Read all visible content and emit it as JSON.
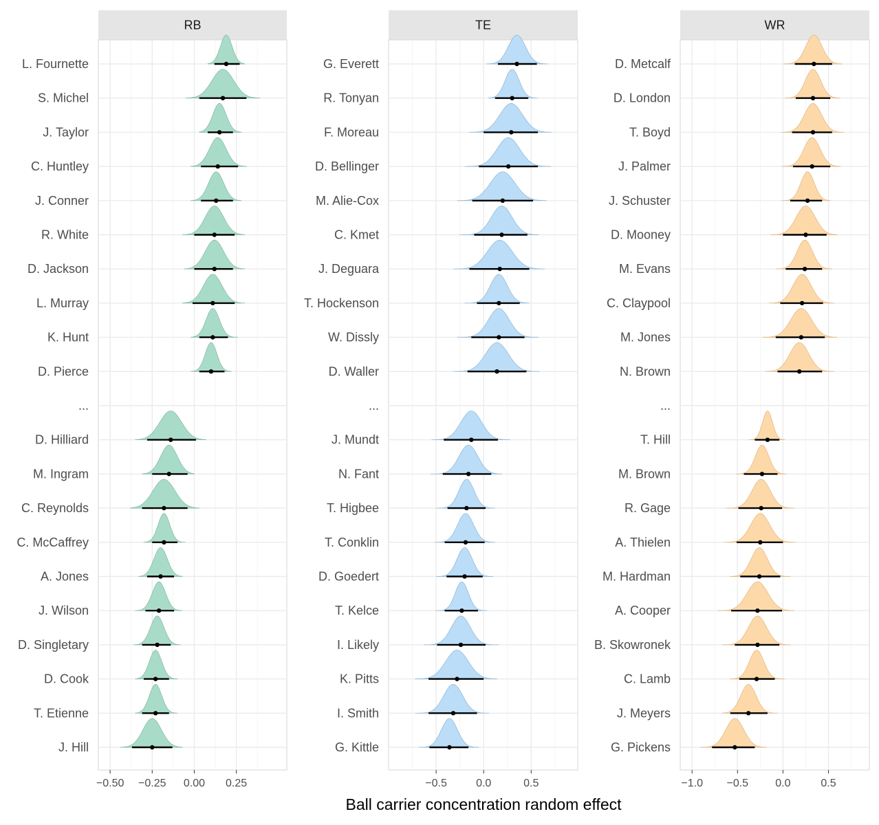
{
  "chart_data": {
    "type": "ridgeline-interval",
    "xlabel": "Ball carrier concentration random effect",
    "ellipsis_label": "...",
    "panels": [
      {
        "title": "RB",
        "color": "#A9DCC8",
        "outline": "#7FB7A0",
        "xlim": [
          -0.57,
          0.55
        ],
        "ticks": [
          -0.5,
          -0.25,
          0.0,
          0.25
        ],
        "tick_labels": [
          "-0.50",
          "-0.25",
          "0.00",
          "0.25"
        ],
        "top": [
          {
            "name": "L. Fournette",
            "median": 0.19,
            "lo": 0.12,
            "hi": 0.27,
            "dmin": 0.08,
            "dmax": 0.3,
            "sd": 0.035
          },
          {
            "name": "S. Michel",
            "median": 0.17,
            "lo": 0.03,
            "hi": 0.31,
            "dmin": -0.05,
            "dmax": 0.39,
            "sd": 0.065
          },
          {
            "name": "J. Taylor",
            "median": 0.15,
            "lo": 0.08,
            "hi": 0.23,
            "dmin": 0.03,
            "dmax": 0.28,
            "sd": 0.04
          },
          {
            "name": "C. Huntley",
            "median": 0.14,
            "lo": 0.04,
            "hi": 0.26,
            "dmin": -0.02,
            "dmax": 0.31,
            "sd": 0.05
          },
          {
            "name": "J. Conner",
            "median": 0.13,
            "lo": 0.04,
            "hi": 0.23,
            "dmin": -0.02,
            "dmax": 0.28,
            "sd": 0.045
          },
          {
            "name": "R. White",
            "median": 0.12,
            "lo": 0.0,
            "hi": 0.24,
            "dmin": -0.07,
            "dmax": 0.3,
            "sd": 0.055
          },
          {
            "name": "D. Jackson",
            "median": 0.12,
            "lo": 0.0,
            "hi": 0.23,
            "dmin": -0.06,
            "dmax": 0.3,
            "sd": 0.055
          },
          {
            "name": "L. Murray",
            "median": 0.11,
            "lo": -0.01,
            "hi": 0.24,
            "dmin": -0.07,
            "dmax": 0.3,
            "sd": 0.055
          },
          {
            "name": "K. Hunt",
            "median": 0.11,
            "lo": 0.03,
            "hi": 0.2,
            "dmin": -0.02,
            "dmax": 0.26,
            "sd": 0.04
          },
          {
            "name": "D. Pierce",
            "median": 0.1,
            "lo": 0.03,
            "hi": 0.18,
            "dmin": -0.02,
            "dmax": 0.22,
            "sd": 0.035
          }
        ],
        "bottom": [
          {
            "name": "D. Hilliard",
            "median": -0.14,
            "lo": -0.28,
            "hi": 0.01,
            "dmin": -0.35,
            "dmax": 0.07,
            "sd": 0.065
          },
          {
            "name": "M. Ingram",
            "median": -0.15,
            "lo": -0.25,
            "hi": -0.04,
            "dmin": -0.31,
            "dmax": 0.0,
            "sd": 0.05
          },
          {
            "name": "C. Reynolds",
            "median": -0.18,
            "lo": -0.31,
            "hi": -0.04,
            "dmin": -0.38,
            "dmax": 0.03,
            "sd": 0.065
          },
          {
            "name": "C. McCaffrey",
            "median": -0.18,
            "lo": -0.25,
            "hi": -0.1,
            "dmin": -0.3,
            "dmax": -0.05,
            "sd": 0.035
          },
          {
            "name": "A. Jones",
            "median": -0.2,
            "lo": -0.28,
            "hi": -0.12,
            "dmin": -0.33,
            "dmax": -0.07,
            "sd": 0.04
          },
          {
            "name": "J. Wilson",
            "median": -0.21,
            "lo": -0.29,
            "hi": -0.12,
            "dmin": -0.35,
            "dmax": -0.07,
            "sd": 0.04
          },
          {
            "name": "D. Singletary",
            "median": -0.22,
            "lo": -0.31,
            "hi": -0.14,
            "dmin": -0.36,
            "dmax": -0.08,
            "sd": 0.04
          },
          {
            "name": "D. Cook",
            "median": -0.23,
            "lo": -0.3,
            "hi": -0.15,
            "dmin": -0.35,
            "dmax": -0.1,
            "sd": 0.037
          },
          {
            "name": "T. Etienne",
            "median": -0.23,
            "lo": -0.31,
            "hi": -0.15,
            "dmin": -0.35,
            "dmax": -0.1,
            "sd": 0.037
          },
          {
            "name": "J. Hill",
            "median": -0.25,
            "lo": -0.37,
            "hi": -0.13,
            "dmin": -0.44,
            "dmax": -0.07,
            "sd": 0.055
          }
        ]
      },
      {
        "title": "TE",
        "color": "#BBDDF7",
        "outline": "#8DB5D6",
        "xlim": [
          -1.0,
          0.99
        ],
        "ticks": [
          -0.5,
          0.0,
          0.5
        ],
        "tick_labels": [
          "-0.5",
          "0.0",
          "0.5"
        ],
        "top": [
          {
            "name": "G. Everett",
            "median": 0.35,
            "lo": 0.15,
            "hi": 0.56,
            "dmin": 0.03,
            "dmax": 0.67,
            "sd": 0.09
          },
          {
            "name": "R. Tonyan",
            "median": 0.3,
            "lo": 0.12,
            "hi": 0.47,
            "dmin": 0.05,
            "dmax": 0.57,
            "sd": 0.075
          },
          {
            "name": "F. Moreau",
            "median": 0.29,
            "lo": 0.0,
            "hi": 0.57,
            "dmin": -0.15,
            "dmax": 0.71,
            "sd": 0.12
          },
          {
            "name": "D. Bellinger",
            "median": 0.26,
            "lo": -0.05,
            "hi": 0.57,
            "dmin": -0.2,
            "dmax": 0.71,
            "sd": 0.12
          },
          {
            "name": "M. Alie-Cox",
            "median": 0.2,
            "lo": -0.12,
            "hi": 0.52,
            "dmin": -0.28,
            "dmax": 0.66,
            "sd": 0.13
          },
          {
            "name": "C. Kmet",
            "median": 0.19,
            "lo": -0.1,
            "hi": 0.46,
            "dmin": -0.25,
            "dmax": 0.58,
            "sd": 0.11
          },
          {
            "name": "J. Deguara",
            "median": 0.17,
            "lo": -0.15,
            "hi": 0.48,
            "dmin": -0.32,
            "dmax": 0.64,
            "sd": 0.13
          },
          {
            "name": "T. Hockenson",
            "median": 0.16,
            "lo": -0.07,
            "hi": 0.38,
            "dmin": -0.2,
            "dmax": 0.48,
            "sd": 0.09
          },
          {
            "name": "W. Dissly",
            "median": 0.16,
            "lo": -0.13,
            "hi": 0.43,
            "dmin": -0.28,
            "dmax": 0.58,
            "sd": 0.11
          },
          {
            "name": "D. Waller",
            "median": 0.14,
            "lo": -0.17,
            "hi": 0.45,
            "dmin": -0.32,
            "dmax": 0.59,
            "sd": 0.12
          }
        ],
        "bottom": [
          {
            "name": "J. Mundt",
            "median": -0.13,
            "lo": -0.42,
            "hi": 0.15,
            "dmin": -0.55,
            "dmax": 0.28,
            "sd": 0.11
          },
          {
            "name": "N. Fant",
            "median": -0.16,
            "lo": -0.43,
            "hi": 0.08,
            "dmin": -0.56,
            "dmax": 0.19,
            "sd": 0.1
          },
          {
            "name": "T. Higbee",
            "median": -0.18,
            "lo": -0.38,
            "hi": 0.02,
            "dmin": -0.5,
            "dmax": 0.12,
            "sd": 0.08
          },
          {
            "name": "T. Conklin",
            "median": -0.19,
            "lo": -0.41,
            "hi": 0.01,
            "dmin": -0.52,
            "dmax": 0.12,
            "sd": 0.085
          },
          {
            "name": "D. Goedert",
            "median": -0.2,
            "lo": -0.39,
            "hi": -0.01,
            "dmin": -0.5,
            "dmax": 0.1,
            "sd": 0.08
          },
          {
            "name": "T. Kelce",
            "median": -0.23,
            "lo": -0.41,
            "hi": -0.06,
            "dmin": -0.51,
            "dmax": 0.04,
            "sd": 0.07
          },
          {
            "name": "I. Likely",
            "median": -0.24,
            "lo": -0.49,
            "hi": 0.02,
            "dmin": -0.63,
            "dmax": 0.16,
            "sd": 0.1
          },
          {
            "name": "K. Pitts",
            "median": -0.28,
            "lo": -0.58,
            "hi": 0.0,
            "dmin": -0.72,
            "dmax": 0.14,
            "sd": 0.12
          },
          {
            "name": "I. Smith",
            "median": -0.32,
            "lo": -0.58,
            "hi": -0.07,
            "dmin": -0.72,
            "dmax": 0.06,
            "sd": 0.1
          },
          {
            "name": "G. Kittle",
            "median": -0.36,
            "lo": -0.57,
            "hi": -0.16,
            "dmin": -0.68,
            "dmax": -0.05,
            "sd": 0.085
          }
        ]
      },
      {
        "title": "WR",
        "color": "#FDD9AA",
        "outline": "#E2B37D",
        "xlim": [
          -1.13,
          0.95
        ],
        "ticks": [
          -1.0,
          -0.5,
          0.0,
          0.5
        ],
        "tick_labels": [
          "-1.0",
          "-0.5",
          "0.0",
          "0.5"
        ],
        "top": [
          {
            "name": "D. Metcalf",
            "median": 0.34,
            "lo": 0.13,
            "hi": 0.54,
            "dmin": 0.01,
            "dmax": 0.65,
            "sd": 0.09
          },
          {
            "name": "D. London",
            "median": 0.33,
            "lo": 0.14,
            "hi": 0.52,
            "dmin": 0.02,
            "dmax": 0.63,
            "sd": 0.085
          },
          {
            "name": "T. Boyd",
            "median": 0.33,
            "lo": 0.1,
            "hi": 0.54,
            "dmin": -0.02,
            "dmax": 0.67,
            "sd": 0.095
          },
          {
            "name": "J. Palmer",
            "median": 0.32,
            "lo": 0.11,
            "hi": 0.52,
            "dmin": -0.01,
            "dmax": 0.63,
            "sd": 0.09
          },
          {
            "name": "J. Schuster",
            "median": 0.27,
            "lo": 0.08,
            "hi": 0.43,
            "dmin": -0.02,
            "dmax": 0.52,
            "sd": 0.075
          },
          {
            "name": "D. Mooney",
            "median": 0.25,
            "lo": 0.0,
            "hi": 0.48,
            "dmin": -0.13,
            "dmax": 0.6,
            "sd": 0.105
          },
          {
            "name": "M. Evans",
            "median": 0.24,
            "lo": 0.03,
            "hi": 0.43,
            "dmin": -0.08,
            "dmax": 0.54,
            "sd": 0.085
          },
          {
            "name": "C. Claypool",
            "median": 0.21,
            "lo": -0.03,
            "hi": 0.44,
            "dmin": -0.15,
            "dmax": 0.56,
            "sd": 0.1
          },
          {
            "name": "M. Jones",
            "median": 0.2,
            "lo": -0.08,
            "hi": 0.46,
            "dmin": -0.22,
            "dmax": 0.59,
            "sd": 0.115
          },
          {
            "name": "N. Brown",
            "median": 0.18,
            "lo": -0.06,
            "hi": 0.43,
            "dmin": -0.19,
            "dmax": 0.56,
            "sd": 0.105
          }
        ],
        "bottom": [
          {
            "name": "T. Hill",
            "median": -0.17,
            "lo": -0.31,
            "hi": -0.04,
            "dmin": -0.38,
            "dmax": 0.02,
            "sd": 0.055
          },
          {
            "name": "M. Brown",
            "median": -0.23,
            "lo": -0.43,
            "hi": -0.06,
            "dmin": -0.52,
            "dmax": 0.04,
            "sd": 0.075
          },
          {
            "name": "R. Gage",
            "median": -0.24,
            "lo": -0.49,
            "hi": -0.01,
            "dmin": -0.63,
            "dmax": 0.12,
            "sd": 0.1
          },
          {
            "name": "A. Thielen",
            "median": -0.25,
            "lo": -0.51,
            "hi": 0.0,
            "dmin": -0.65,
            "dmax": 0.14,
            "sd": 0.105
          },
          {
            "name": "M. Hardman",
            "median": -0.26,
            "lo": -0.47,
            "hi": -0.03,
            "dmin": -0.58,
            "dmax": 0.08,
            "sd": 0.09
          },
          {
            "name": "A. Cooper",
            "median": -0.28,
            "lo": -0.57,
            "hi": -0.01,
            "dmin": -0.72,
            "dmax": 0.12,
            "sd": 0.115
          },
          {
            "name": "B. Skowronek",
            "median": -0.28,
            "lo": -0.53,
            "hi": -0.04,
            "dmin": -0.67,
            "dmax": 0.08,
            "sd": 0.1
          },
          {
            "name": "C. Lamb",
            "median": -0.29,
            "lo": -0.48,
            "hi": -0.09,
            "dmin": -0.58,
            "dmax": 0.02,
            "sd": 0.08
          },
          {
            "name": "J. Meyers",
            "median": -0.38,
            "lo": -0.58,
            "hi": -0.17,
            "dmin": -0.67,
            "dmax": -0.06,
            "sd": 0.085
          },
          {
            "name": "G. Pickens",
            "median": -0.53,
            "lo": -0.78,
            "hi": -0.31,
            "dmin": -0.91,
            "dmax": -0.18,
            "sd": 0.1
          }
        ]
      }
    ]
  }
}
